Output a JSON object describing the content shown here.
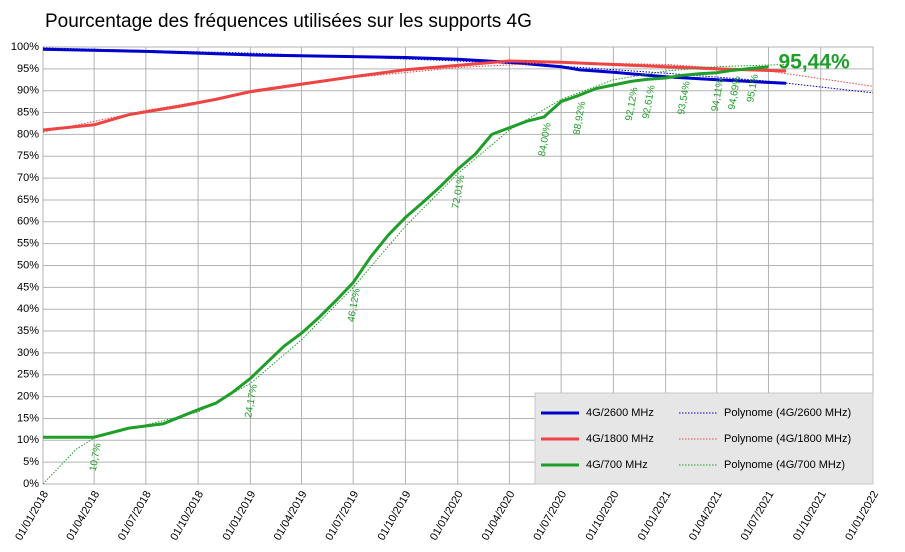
{
  "chart_data": {
    "type": "line",
    "title": "Pourcentage des fréquences utilisées sur les supports 4G",
    "xlim": [
      "2018-01-01",
      "2022-01-01"
    ],
    "xticks": [
      {
        "value": "2018-01-01",
        "label": "01/01/2018"
      },
      {
        "value": "2018-04-01",
        "label": "01/04/2018"
      },
      {
        "value": "2018-07-01",
        "label": "01/07/2018"
      },
      {
        "value": "2018-10-01",
        "label": "01/10/2018"
      },
      {
        "value": "2019-01-01",
        "label": "01/01/2019"
      },
      {
        "value": "2019-04-01",
        "label": "01/04/2019"
      },
      {
        "value": "2019-07-01",
        "label": "01/07/2019"
      },
      {
        "value": "2019-10-01",
        "label": "01/10/2019"
      },
      {
        "value": "2020-01-01",
        "label": "01/01/2020"
      },
      {
        "value": "2020-04-01",
        "label": "01/04/2020"
      },
      {
        "value": "2020-07-01",
        "label": "01/07/2020"
      },
      {
        "value": "2020-10-01",
        "label": "01/10/2020"
      },
      {
        "value": "2021-01-01",
        "label": "01/01/2021"
      },
      {
        "value": "2021-04-01",
        "label": "01/04/2021"
      },
      {
        "value": "2021-07-01",
        "label": "01/07/2021"
      },
      {
        "value": "2021-10-01",
        "label": "01/10/2021"
      },
      {
        "value": "2022-01-01",
        "label": "01/01/2022"
      }
    ],
    "ylim": [
      0,
      100
    ],
    "yticks": [
      {
        "value": 0,
        "label": "0%"
      },
      {
        "value": 5,
        "label": "5%"
      },
      {
        "value": 10,
        "label": "10%"
      },
      {
        "value": 15,
        "label": "15%"
      },
      {
        "value": 20,
        "label": "20%"
      },
      {
        "value": 25,
        "label": "25%"
      },
      {
        "value": 30,
        "label": "30%"
      },
      {
        "value": 35,
        "label": "35%"
      },
      {
        "value": 40,
        "label": "40%"
      },
      {
        "value": 45,
        "label": "45%"
      },
      {
        "value": 50,
        "label": "50%"
      },
      {
        "value": 55,
        "label": "55%"
      },
      {
        "value": 60,
        "label": "60%"
      },
      {
        "value": 65,
        "label": "65%"
      },
      {
        "value": 70,
        "label": "70%"
      },
      {
        "value": 75,
        "label": "75%"
      },
      {
        "value": 80,
        "label": "80%"
      },
      {
        "value": 85,
        "label": "85%"
      },
      {
        "value": 90,
        "label": "90%"
      },
      {
        "value": 95,
        "label": "95%"
      },
      {
        "value": 100,
        "label": "100%"
      }
    ],
    "grid": true,
    "legend": "lower right",
    "series": [
      {
        "name": "4G/2600 MHz",
        "color": "#0000cc",
        "style": "solid",
        "x": [
          "2018-01-01",
          "2018-07-01",
          "2019-01-01",
          "2019-07-01",
          "2019-10-01",
          "2020-01-01",
          "2020-04-01",
          "2020-07-01",
          "2020-08-01",
          "2020-10-01",
          "2021-01-01",
          "2021-04-01",
          "2021-08-01"
        ],
        "values": [
          99.5,
          99,
          98.2,
          97.8,
          97.6,
          97.2,
          96.5,
          95.5,
          94.8,
          94.2,
          93.2,
          92.5,
          91.7
        ]
      },
      {
        "name": "Polynome (4G/2600 MHz)",
        "color": "#0000cc",
        "style": "dotted",
        "x": [
          "2018-01-01",
          "2019-01-01",
          "2020-01-01",
          "2020-07-01",
          "2021-01-01",
          "2021-07-01",
          "2022-01-01"
        ],
        "values": [
          99.8,
          98.6,
          96.8,
          95.6,
          94,
          92.2,
          89.5
        ]
      },
      {
        "name": "4G/1800 MHz",
        "color": "#ee4444",
        "style": "solid",
        "x": [
          "2018-01-01",
          "2018-04-01",
          "2018-06-01",
          "2018-09-01",
          "2018-11-01",
          "2019-01-01",
          "2019-04-01",
          "2019-07-01",
          "2019-10-01",
          "2020-01-01",
          "2020-04-01",
          "2020-07-01",
          "2020-10-01",
          "2021-01-01",
          "2021-04-01",
          "2021-08-01"
        ],
        "values": [
          81,
          82.2,
          84.5,
          86.5,
          88,
          89.8,
          91.5,
          93.2,
          94.8,
          95.8,
          96.8,
          96.5,
          96,
          95.5,
          95,
          94.5
        ]
      },
      {
        "name": "Polynome (4G/1800 MHz)",
        "color": "#ee4444",
        "style": "dotted",
        "x": [
          "2018-01-01",
          "2018-07-01",
          "2019-01-01",
          "2019-07-01",
          "2020-01-01",
          "2020-07-01",
          "2021-01-01",
          "2021-07-01",
          "2022-01-01"
        ],
        "values": [
          80.5,
          85.5,
          89.5,
          93,
          95.3,
          96.5,
          96,
          94.5,
          91
        ]
      },
      {
        "name": "4G/700 MHz",
        "color": "#1f9e2a",
        "style": "solid",
        "x": [
          "2018-01-01",
          "2018-04-01",
          "2018-06-01",
          "2018-08-01",
          "2018-10-01",
          "2018-11-01",
          "2018-12-01",
          "2019-01-01",
          "2019-03-01",
          "2019-04-01",
          "2019-05-01",
          "2019-06-01",
          "2019-07-01",
          "2019-08-01",
          "2019-09-01",
          "2019-10-01",
          "2019-11-01",
          "2019-12-01",
          "2020-01-01",
          "2020-02-01",
          "2020-03-01",
          "2020-04-01",
          "2020-05-01",
          "2020-06-01",
          "2020-07-01",
          "2020-08-01",
          "2020-09-01",
          "2020-10-01",
          "2020-11-01",
          "2020-12-01",
          "2021-01-01",
          "2021-02-01",
          "2021-03-01",
          "2021-04-01",
          "2021-05-01",
          "2021-06-01",
          "2021-07-01"
        ],
        "values": [
          10.7,
          10.7,
          12.8,
          13.8,
          17,
          18.5,
          21,
          24.17,
          31.5,
          34.5,
          38,
          42,
          46.12,
          52,
          57,
          61,
          64.5,
          68,
          72.01,
          75.5,
          80,
          81.5,
          83,
          84.0,
          87.5,
          88.92,
          90.5,
          91.3,
          92.12,
          92.61,
          92.9,
          93.54,
          93.9,
          94.11,
          94.69,
          95.1,
          95.44
        ],
        "value_labels": [
          null,
          "10,7%",
          null,
          null,
          null,
          null,
          null,
          "24,17%",
          null,
          null,
          null,
          null,
          "46,12%",
          null,
          null,
          null,
          null,
          null,
          "72,01%",
          null,
          null,
          null,
          null,
          "84,00%",
          null,
          "88,92%",
          null,
          null,
          "92,12%",
          "92,61%",
          null,
          "93,54%",
          null,
          "94,11%",
          "94,69%",
          "95,1%",
          "95,44%"
        ]
      },
      {
        "name": "Polynome (4G/700 MHz)",
        "color": "#1f9e2a",
        "style": "dotted",
        "x": [
          "2018-01-01",
          "2018-03-01",
          "2018-04-01",
          "2018-07-01",
          "2018-10-01",
          "2019-01-01",
          "2019-04-01",
          "2019-07-01",
          "2019-10-01",
          "2020-01-01",
          "2020-04-01",
          "2020-07-01",
          "2020-10-01",
          "2021-01-01",
          "2021-04-01",
          "2021-08-01"
        ],
        "values": [
          0,
          8,
          10.5,
          13.5,
          16.5,
          23,
          33,
          45,
          59,
          71,
          81,
          88,
          92.5,
          94.5,
          95.5,
          96
        ]
      }
    ]
  }
}
